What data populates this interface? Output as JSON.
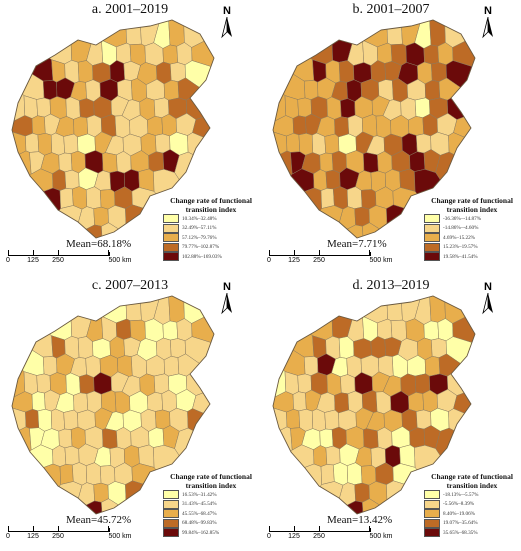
{
  "colors": {
    "c1": "#ffffa8",
    "c2": "#f7d68a",
    "c3": "#e8ae4c",
    "c4": "#bd6b26",
    "c5": "#6b0a0a",
    "boundary": "#8b7b5f"
  },
  "north_label": "N",
  "legend_title_line1": "Change rate of functional",
  "legend_title_line2": "transition index",
  "scale": {
    "ticks": [
      "0",
      "125",
      "250",
      "500 km"
    ]
  },
  "panels": [
    {
      "title": "a. 2001–2019",
      "mean": "Mean=68.18%",
      "legend": [
        "10.34%–32.48%",
        "32.49%–57.11%",
        "57.12%–79.76%",
        "79.77%–102.87%",
        "102.88%–169.03%"
      ],
      "fills": [
        3,
        2,
        2,
        1,
        3,
        2,
        2,
        3,
        2,
        1,
        2,
        3,
        2,
        3,
        2,
        3,
        5,
        3,
        2,
        3,
        4,
        5,
        2,
        3,
        4,
        2,
        1,
        2,
        5,
        5,
        3,
        2,
        5,
        2,
        3,
        2,
        3,
        4,
        2,
        2,
        2,
        3,
        2,
        4,
        4,
        2,
        2,
        3,
        2,
        4,
        4,
        4,
        3,
        2,
        3,
        3,
        2,
        4,
        2,
        2,
        3,
        3,
        2,
        4,
        3,
        2
      ]
    },
    {
      "title": "b. 2001–2007",
      "mean": "Mean=7.71%",
      "legend": [
        "-36.36%–-14.87%",
        "-14.86%–-4.60%",
        "4.69%–15.22%",
        "15.23%–19.57%",
        "19.58%–41.54%"
      ],
      "fills": [
        3,
        2,
        3,
        1,
        4,
        2,
        4,
        5,
        2,
        2,
        3,
        4,
        5,
        4,
        3,
        4,
        3,
        5,
        3,
        4,
        5,
        4,
        4,
        5,
        3,
        4,
        5,
        3,
        3,
        3,
        4,
        5,
        4,
        2,
        4,
        2,
        4,
        3,
        3,
        3,
        3,
        4,
        3,
        5,
        3,
        3,
        2,
        2,
        1,
        4,
        5,
        3,
        4,
        4,
        3,
        4,
        2,
        3,
        3,
        3,
        3,
        4,
        2,
        3,
        3,
        3
      ]
    },
    {
      "title": "c. 2007–2013",
      "mean": "Mean=45.72%",
      "legend": [
        "16.53%–31.42%",
        "31.43%–45.54%",
        "45.55%–68.47%",
        "68.48%–99.83%",
        "99.84%–162.85%"
      ],
      "fills": [
        1,
        2,
        2,
        2,
        3,
        1,
        1,
        2,
        3,
        2,
        4,
        3,
        1,
        1,
        2,
        3,
        2,
        4,
        2,
        2,
        1,
        3,
        2,
        1,
        2,
        2,
        2,
        1,
        2,
        3,
        2,
        2,
        3,
        3,
        2,
        2,
        2,
        2,
        3,
        2,
        2,
        3,
        1,
        4,
        5,
        2,
        2,
        3,
        2,
        1,
        2,
        3,
        1,
        2,
        1,
        2,
        2,
        3,
        3,
        1,
        2,
        2,
        1,
        2,
        2,
        4
      ]
    },
    {
      "title": "d. 2013–2019",
      "mean": "Mean=13.42%",
      "legend": [
        "-18.13%–-5.57%",
        "-5.56%–8.39%",
        "8.40%–19.06%",
        "19.07%–35.64%",
        "35.65%–68.35%"
      ],
      "fills": [
        2,
        2,
        2,
        2,
        3,
        3,
        3,
        4,
        2,
        1,
        2,
        2,
        3,
        1,
        1,
        4,
        3,
        4,
        2,
        1,
        4,
        4,
        4,
        2,
        3,
        2,
        1,
        3,
        2,
        5,
        1,
        2,
        2,
        2,
        1,
        1,
        3,
        4,
        1,
        2,
        2,
        4,
        3,
        2,
        5,
        3,
        3,
        4,
        4,
        5,
        2,
        3,
        2,
        3,
        2,
        4,
        2,
        4,
        2,
        5,
        3,
        3,
        2,
        4,
        2,
        3
      ]
    }
  ]
}
